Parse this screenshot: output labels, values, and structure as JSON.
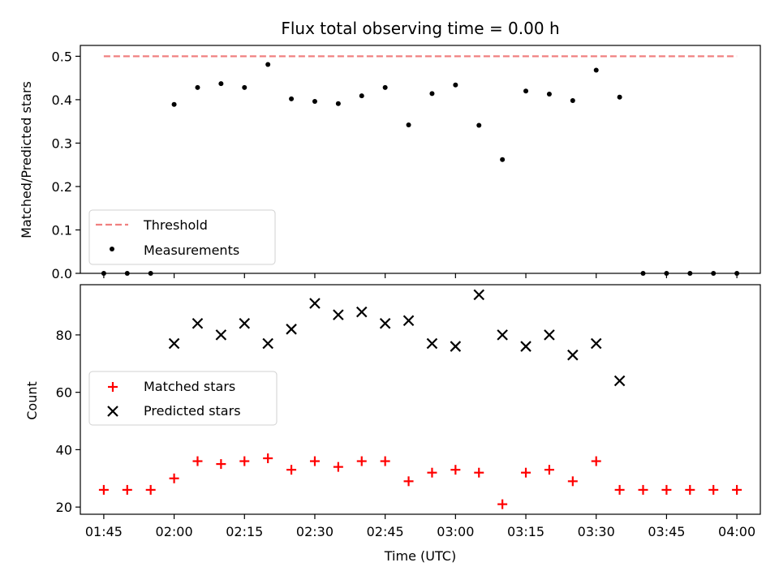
{
  "chart_data": [
    {
      "type": "scatter",
      "title": "Flux total observing time = 0.00 h",
      "xlabel": "",
      "ylabel": "Matched/Predicted stars",
      "ylim": [
        0.0,
        0.525
      ],
      "xlim": [
        "01:40",
        "04:05"
      ],
      "yticks": [
        0.0,
        0.1,
        0.2,
        0.3,
        0.4,
        0.5
      ],
      "ytick_labels": [
        "0.0",
        "0.1",
        "0.2",
        "0.3",
        "0.4",
        "0.5"
      ],
      "legend_position": "lower-left",
      "threshold": {
        "name": "Threshold",
        "value": 0.5,
        "x_start": "01:45",
        "x_end": "04:00",
        "color": "#f08080",
        "style": "dashed"
      },
      "series": [
        {
          "name": "Measurements",
          "marker": "dot",
          "color": "#000000",
          "x": [
            "01:45",
            "01:50",
            "01:55",
            "02:00",
            "02:05",
            "02:10",
            "02:15",
            "02:20",
            "02:25",
            "02:30",
            "02:35",
            "02:40",
            "02:45",
            "02:50",
            "02:55",
            "03:00",
            "03:05",
            "03:10",
            "03:15",
            "03:20",
            "03:25",
            "03:30",
            "03:35",
            "03:40",
            "03:45",
            "03:50",
            "03:55",
            "04:00"
          ],
          "values": [
            0.0,
            0.0,
            0.0,
            0.389,
            0.428,
            0.437,
            0.428,
            0.481,
            0.402,
            0.396,
            0.391,
            0.409,
            0.428,
            0.342,
            0.414,
            0.434,
            0.341,
            0.262,
            0.42,
            0.413,
            0.398,
            0.468,
            0.406,
            0.0,
            0.0,
            0.0,
            0.0,
            0.0
          ]
        }
      ]
    },
    {
      "type": "scatter",
      "title": "",
      "xlabel": "Time (UTC)",
      "ylabel": "Count",
      "ylim": [
        17.5,
        97.5
      ],
      "xlim": [
        "01:40",
        "04:05"
      ],
      "yticks": [
        20,
        40,
        60,
        80
      ],
      "ytick_labels": [
        "20",
        "40",
        "60",
        "80"
      ],
      "xticks": [
        "01:45",
        "02:00",
        "02:15",
        "02:30",
        "02:45",
        "03:00",
        "03:15",
        "03:30",
        "03:45",
        "04:00"
      ],
      "legend_position": "center-left",
      "series": [
        {
          "name": "Matched stars",
          "marker": "plus",
          "color": "#ff0000",
          "x": [
            "01:45",
            "01:50",
            "01:55",
            "02:00",
            "02:05",
            "02:10",
            "02:15",
            "02:20",
            "02:25",
            "02:30",
            "02:35",
            "02:40",
            "02:45",
            "02:50",
            "02:55",
            "03:00",
            "03:05",
            "03:10",
            "03:15",
            "03:20",
            "03:25",
            "03:30",
            "03:35",
            "03:40",
            "03:45",
            "03:50",
            "03:55",
            "04:00"
          ],
          "values": [
            26,
            26,
            26,
            30,
            36,
            35,
            36,
            37,
            33,
            36,
            34,
            36,
            36,
            29,
            32,
            33,
            32,
            21,
            32,
            33,
            29,
            36,
            26,
            26,
            26,
            26,
            26,
            26
          ]
        },
        {
          "name": "Predicted stars",
          "marker": "x",
          "color": "#000000",
          "x": [
            "02:00",
            "02:05",
            "02:10",
            "02:15",
            "02:20",
            "02:25",
            "02:30",
            "02:35",
            "02:40",
            "02:45",
            "02:50",
            "02:55",
            "03:00",
            "03:05",
            "03:10",
            "03:15",
            "03:20",
            "03:25",
            "03:30",
            "03:35"
          ],
          "values": [
            77,
            84,
            80,
            84,
            77,
            82,
            91,
            87,
            88,
            84,
            85,
            77,
            76,
            94,
            80,
            76,
            80,
            73,
            77,
            64
          ]
        }
      ]
    }
  ]
}
